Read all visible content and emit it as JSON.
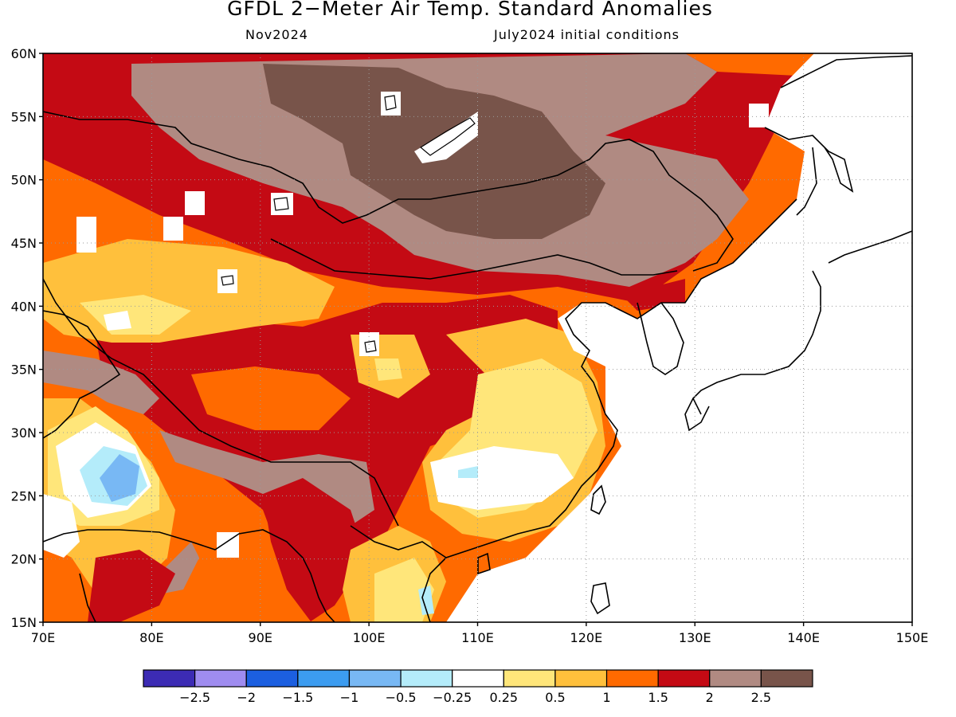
{
  "title": "GFDL 2−Meter Air Temp. Standard Anomalies",
  "subtitle_left": "Nov2024",
  "subtitle_right": "July2024 initial conditions",
  "map": {
    "lon_range": [
      70,
      150
    ],
    "lat_range": [
      15,
      60
    ],
    "lon_ticks": [
      "70E",
      "80E",
      "90E",
      "100E",
      "110E",
      "120E",
      "130E",
      "140E",
      "150E"
    ],
    "lat_ticks": [
      "60N",
      "55N",
      "50N",
      "45N",
      "40N",
      "35N",
      "30N",
      "25N",
      "20N",
      "15N"
    ],
    "grid": "dotted"
  },
  "colorbar": {
    "colors": [
      "#3c2bb4",
      "#9f8cf0",
      "#1c5fe0",
      "#3c9cf0",
      "#78b8f4",
      "#b4ecfa",
      "#ffffff",
      "#ffe67a",
      "#ffc03c",
      "#ff6a00",
      "#c40a14",
      "#b08a82",
      "#78544a"
    ],
    "labels": [
      "−2.5",
      "−2",
      "−1.5",
      "−1",
      "−0.5",
      "−0.25",
      "0.25",
      "0.5",
      "1",
      "1.5",
      "2",
      "2.5"
    ]
  }
}
